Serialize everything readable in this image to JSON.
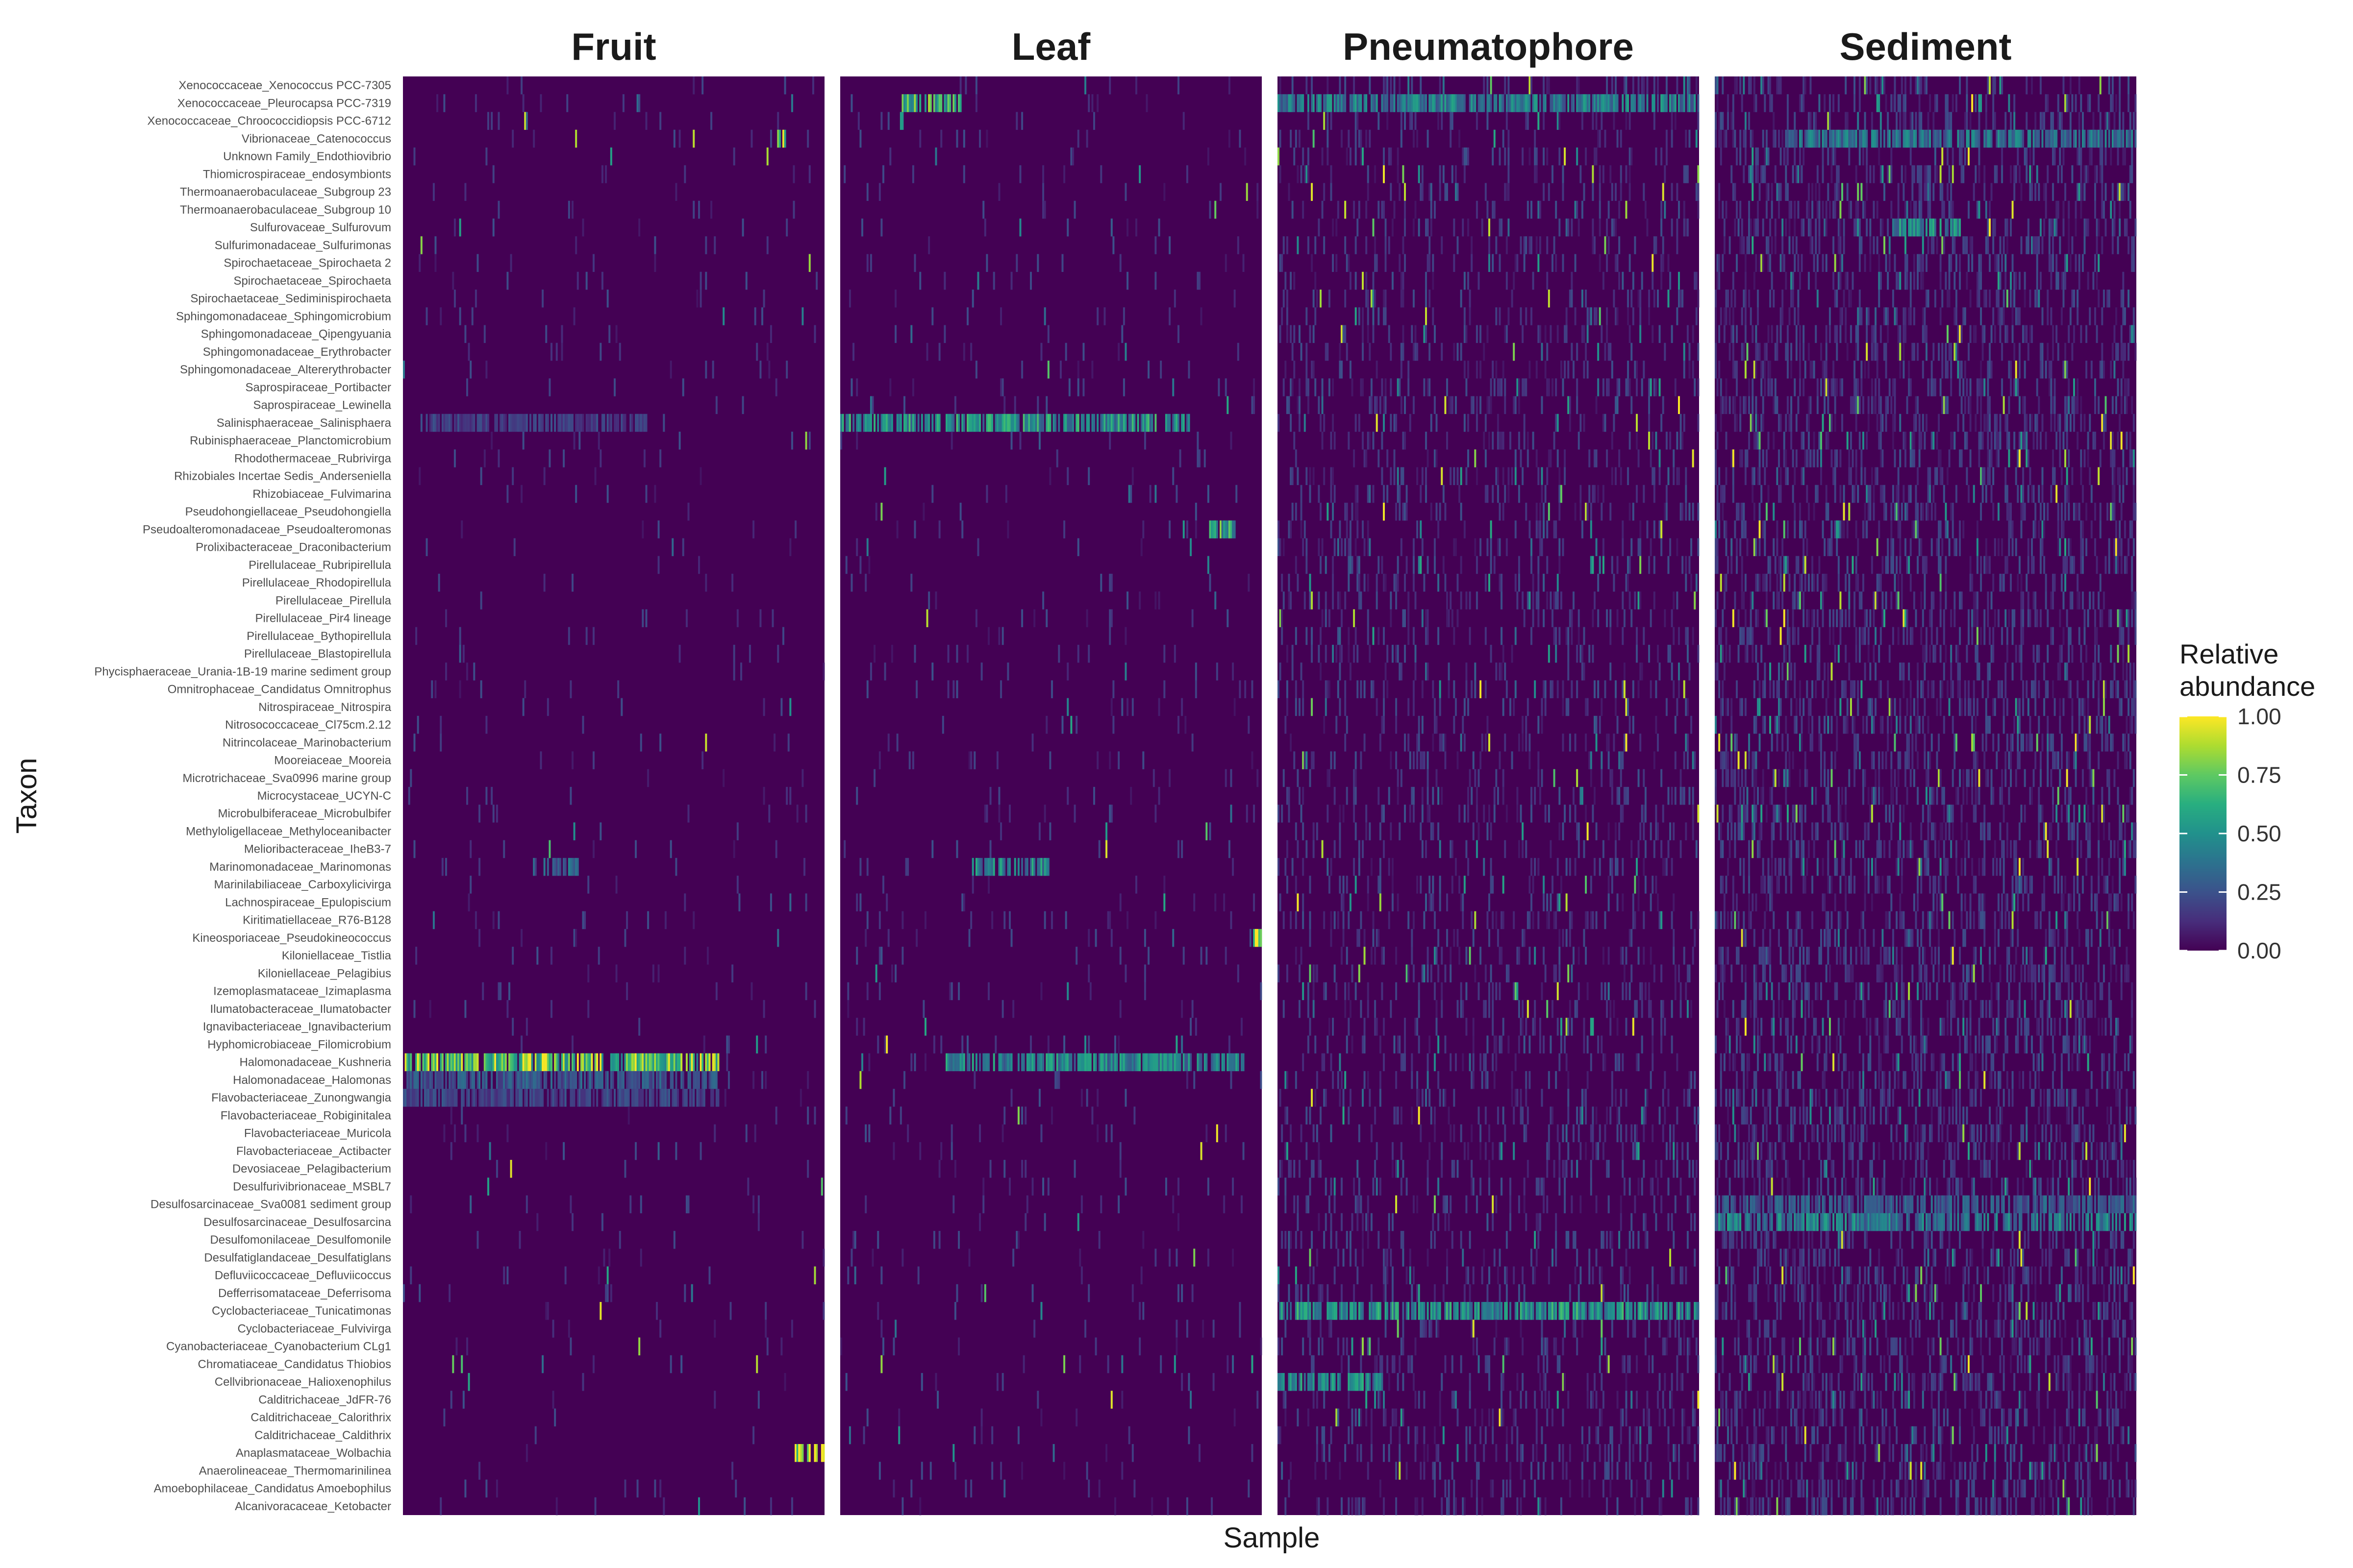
{
  "chart_data": {
    "type": "heatmap",
    "xlabel": "Sample",
    "ylabel": "Taxon",
    "facets": [
      "Fruit",
      "Leaf",
      "Pneumatophore",
      "Sediment"
    ],
    "colorscale": "viridis",
    "colors": {
      "low": "#440154",
      "high": "#fde725",
      "background": "#ffffff"
    },
    "legend": {
      "title_lines": [
        "Relative",
        "abundance"
      ],
      "placement": "right",
      "range": [
        0,
        1
      ],
      "ticks": [
        "0.00",
        "0.25",
        "0.50",
        "0.75",
        "1.00"
      ],
      "tick_values": [
        0,
        0.25,
        0.5,
        0.75,
        1.0
      ]
    },
    "samples_per_facet": 240,
    "taxa": [
      "Xenococcaceae_Xenococcus PCC-7305",
      "Xenococcaceae_Pleurocapsa PCC-7319",
      "Xenococcaceae_Chroococcidiopsis PCC-6712",
      "Vibrionaceae_Catenococcus",
      "Unknown Family_Endothiovibrio",
      "Thiomicrospiraceae_endosymbionts",
      "Thermoanaerobaculaceae_Subgroup 23",
      "Thermoanaerobaculaceae_Subgroup 10",
      "Sulfurovaceae_Sulfurovum",
      "Sulfurimonadaceae_Sulfurimonas",
      "Spirochaetaceae_Spirochaeta 2",
      "Spirochaetaceae_Spirochaeta",
      "Spirochaetaceae_Sediminispirochaeta",
      "Sphingomonadaceae_Sphingomicrobium",
      "Sphingomonadaceae_Qipengyuania",
      "Sphingomonadaceae_Erythrobacter",
      "Sphingomonadaceae_Altererythrobacter",
      "Saprospiraceae_Portibacter",
      "Saprospiraceae_Lewinella",
      "Salinisphaeraceae_Salinisphaera",
      "Rubinisphaeraceae_Planctomicrobium",
      "Rhodothermaceae_Rubrivirga",
      "Rhizobiales Incertae Sedis_Anderseniella",
      "Rhizobiaceae_Fulvimarina",
      "Pseudohongiellaceae_Pseudohongiella",
      "Pseudoalteromonadaceae_Pseudoalteromonas",
      "Prolixibacteraceae_Draconibacterium",
      "Pirellulaceae_Rubripirellula",
      "Pirellulaceae_Rhodopirellula",
      "Pirellulaceae_Pirellula",
      "Pirellulaceae_Pir4 lineage",
      "Pirellulaceae_Bythopirellula",
      "Pirellulaceae_Blastopirellula",
      "Phycisphaeraceae_Urania-1B-19 marine sediment group",
      "Omnitrophaceae_Candidatus Omnitrophus",
      "Nitrospiraceae_Nitrospira",
      "Nitrosococcaceae_Cl75cm.2.12",
      "Nitrincolaceae_Marinobacterium",
      "Mooreiaceae_Mooreia",
      "Microtrichaceae_Sva0996 marine group",
      "Microcystaceae_UCYN-C",
      "Microbulbiferaceae_Microbulbifer",
      "Methyloligellaceae_Methyloceanibacter",
      "Melioribacteraceae_IheB3-7",
      "Marinomonadaceae_Marinomonas",
      "Marinilabiliaceae_Carboxylicivirga",
      "Lachnospiraceae_Epulopiscium",
      "Kiritimatiellaceae_R76-B128",
      "Kineosporiaceae_Pseudokineococcus",
      "Kiloniellaceae_Tistlia",
      "Kiloniellaceae_Pelagibius",
      "Izemoplasmataceae_Izimaplasma",
      "Ilumatobacteraceae_Ilumatobacter",
      "Ignavibacteriaceae_Ignavibacterium",
      "Hyphomicrobiaceae_Filomicrobium",
      "Halomonadaceae_Kushneria",
      "Halomonadaceae_Halomonas",
      "Flavobacteriaceae_Zunongwangia",
      "Flavobacteriaceae_Robiginitalea",
      "Flavobacteriaceae_Muricola",
      "Flavobacteriaceae_Actibacter",
      "Devosiaceae_Pelagibacterium",
      "Desulfurivibrionaceae_MSBL7",
      "Desulfosarcinaceae_Sva0081 sediment group",
      "Desulfosarcinaceae_Desulfosarcina",
      "Desulfomonilaceae_Desulfomonile",
      "Desulfatiglandaceae_Desulfatiglans",
      "Defluviicoccaceae_Defluviicoccus",
      "Defferrisomataceae_Deferrisoma",
      "Cyclobacteriaceae_Tunicatimonas",
      "Cyclobacteriaceae_Fulvivirga",
      "Cyanobacteriaceae_Cyanobacterium CLg1",
      "Chromatiaceae_Candidatus Thiobios",
      "Cellvibrionaceae_Halioxenophilus",
      "Calditrichaceae_JdFR-76",
      "Calditrichaceae_Calorithrix",
      "Calditrichaceae_Caldithrix",
      "Anaplasmataceae_Wolbachia",
      "Anaerolineaceae_Thermomarinilinea",
      "Amoebophilaceae_Candidatus Amoebophilus",
      "Alcanivoracaceae_Ketobacter"
    ],
    "density": {
      "Fruit": 0.025,
      "Leaf": 0.035,
      "Pneumatophore": 0.16,
      "Sediment": 0.3
    },
    "highlights": [
      {
        "facet": "Fruit",
        "taxon": "Halomonadaceae_Kushneria",
        "x_range": [
          0,
          180
        ],
        "level": 0.8
      },
      {
        "facet": "Fruit",
        "taxon": "Halomonadaceae_Halomonas",
        "x_range": [
          0,
          180
        ],
        "level": 0.3
      },
      {
        "facet": "Fruit",
        "taxon": "Flavobacteriaceae_Zunongwangia",
        "x_range": [
          0,
          180
        ],
        "level": 0.22
      },
      {
        "facet": "Fruit",
        "taxon": "Anaplasmataceae_Wolbachia",
        "x_range": [
          223,
          240
        ],
        "level": 1.0
      },
      {
        "facet": "Fruit",
        "taxon": "Salinisphaeraceae_Salinisphaera",
        "x_range": [
          10,
          140
        ],
        "level": 0.2
      },
      {
        "facet": "Fruit",
        "taxon": "Vibrionaceae_Catenococcus",
        "x_range": [
          213,
          218
        ],
        "level": 0.95
      },
      {
        "facet": "Fruit",
        "taxon": "Marinomonadaceae_Marinomonas",
        "x_range": [
          74,
          100
        ],
        "level": 0.35
      },
      {
        "facet": "Leaf",
        "taxon": "Salinisphaeraceae_Salinisphaera",
        "x_range": [
          0,
          200
        ],
        "level": 0.55
      },
      {
        "facet": "Leaf",
        "taxon": "Halomonadaceae_Kushneria",
        "x_range": [
          60,
          230
        ],
        "level": 0.5
      },
      {
        "facet": "Leaf",
        "taxon": "Pseudoalteromonadaceae_Pseudoalteromonas",
        "x_range": [
          210,
          225
        ],
        "level": 0.65
      },
      {
        "facet": "Leaf",
        "taxon": "Xenococcaceae_Pleurocapsa PCC-7319",
        "x_range": [
          35,
          70
        ],
        "level": 0.7
      },
      {
        "facet": "Leaf",
        "taxon": "Marinomonadaceae_Marinomonas",
        "x_range": [
          75,
          120
        ],
        "level": 0.5
      },
      {
        "facet": "Leaf",
        "taxon": "Kineosporiaceae_Pseudokineococcus",
        "x_range": [
          234,
          240
        ],
        "level": 1.0
      },
      {
        "facet": "Pneumatophore",
        "taxon": "Cyclobacteriaceae_Tunicatimonas",
        "x_range": [
          0,
          240
        ],
        "level": 0.55
      },
      {
        "facet": "Pneumatophore",
        "taxon": "Xenococcaceae_Pleurocapsa PCC-7319",
        "x_range": [
          0,
          240
        ],
        "level": 0.45
      },
      {
        "facet": "Pneumatophore",
        "taxon": "Cellvibrionaceae_Halioxenophilus",
        "x_range": [
          0,
          60
        ],
        "level": 0.5
      },
      {
        "facet": "Sediment",
        "taxon": "Desulfosarcinaceae_Desulfosarcina",
        "x_range": [
          0,
          240
        ],
        "level": 0.45
      },
      {
        "facet": "Sediment",
        "taxon": "Sulfurovaceae_Sulfurovum",
        "x_range": [
          100,
          140
        ],
        "level": 0.5
      },
      {
        "facet": "Sediment",
        "taxon": "Desulfosarcinaceae_Sva0081 sediment group",
        "x_range": [
          0,
          240
        ],
        "level": 0.3
      },
      {
        "facet": "Sediment",
        "taxon": "Vibrionaceae_Catenococcus",
        "x_range": [
          40,
          240
        ],
        "level": 0.4
      }
    ]
  }
}
